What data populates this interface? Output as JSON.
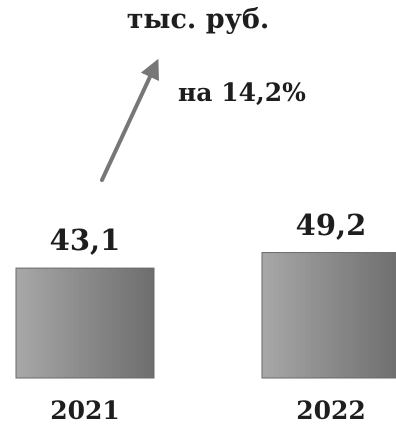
{
  "chart_data": {
    "type": "bar",
    "unit": "тыс. руб.",
    "annotation": "на 14,2%",
    "categories": [
      "2021",
      "2022"
    ],
    "values": [
      43.1,
      49.2
    ],
    "value_labels": [
      "43,1",
      "49,2"
    ],
    "bar_color": "#8c8c8c",
    "arrow_color": "#777777",
    "text_color": "#1e1e1e",
    "grid": false,
    "legend": "none"
  }
}
